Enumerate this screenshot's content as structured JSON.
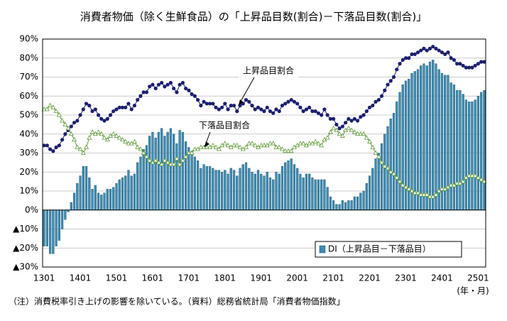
{
  "chart_data": {
    "type": "combo",
    "title": "消費者物価（除く生鮮食品）の「上昇品目数(割合)－下落品目数(割合)」",
    "x_label": "(年・月)",
    "note": "（注）消費税率引き上げの影響を除いている。（資料）総務省統計局「消費者物価指数」",
    "legend": "lower right",
    "grid": true,
    "categories": [
      "1301",
      null,
      null,
      null,
      null,
      null,
      null,
      null,
      null,
      null,
      null,
      null,
      "1401",
      null,
      null,
      null,
      null,
      null,
      null,
      null,
      null,
      null,
      null,
      null,
      "1501",
      null,
      null,
      null,
      null,
      null,
      null,
      null,
      null,
      null,
      null,
      null,
      "1601",
      null,
      null,
      null,
      null,
      null,
      null,
      null,
      null,
      null,
      null,
      null,
      "1701",
      null,
      null,
      null,
      null,
      null,
      null,
      null,
      null,
      null,
      null,
      null,
      "1801",
      null,
      null,
      null,
      null,
      null,
      null,
      null,
      null,
      null,
      null,
      null,
      "1901",
      null,
      null,
      null,
      null,
      null,
      null,
      null,
      null,
      null,
      null,
      null,
      "2001",
      null,
      null,
      null,
      null,
      null,
      null,
      null,
      null,
      null,
      null,
      null,
      "2101",
      null,
      null,
      null,
      null,
      null,
      null,
      null,
      null,
      null,
      null,
      null,
      "2201",
      null,
      null,
      null,
      null,
      null,
      null,
      null,
      null,
      null,
      null,
      null,
      "2301",
      null,
      null,
      null,
      null,
      null,
      null,
      null,
      null,
      null,
      null,
      null,
      "2401",
      null,
      null,
      null,
      null,
      null,
      null,
      null,
      null,
      null,
      null,
      null,
      "2501",
      null,
      null
    ],
    "ylim": [
      -30,
      90
    ],
    "yticks": [
      {
        "value": -30,
        "label": "▲30%"
      },
      {
        "value": -20,
        "label": "▲20%"
      },
      {
        "value": -10,
        "label": "▲10%"
      },
      {
        "value": 0,
        "label": "0%"
      },
      {
        "value": 10,
        "label": "10%"
      },
      {
        "value": 20,
        "label": "20%"
      },
      {
        "value": 30,
        "label": "30%"
      },
      {
        "value": 40,
        "label": "40%"
      },
      {
        "value": 50,
        "label": "50%"
      },
      {
        "value": 60,
        "label": "60%"
      },
      {
        "value": 70,
        "label": "70%"
      },
      {
        "value": 80,
        "label": "80%"
      },
      {
        "value": 90,
        "label": "90%"
      }
    ],
    "series": [
      {
        "name": "DI（上昇品目－下落品目）",
        "type": "bar",
        "color": "#3b8db3",
        "values": [
          -19,
          -19,
          -23,
          -23,
          -19,
          -16,
          -10,
          -5,
          -1,
          4,
          9,
          14,
          18,
          23,
          23,
          17,
          11,
          13,
          9,
          8,
          9,
          11,
          11,
          12,
          14,
          16,
          17,
          18,
          21,
          18,
          19,
          25,
          28,
          32,
          34,
          39,
          41,
          38,
          41,
          43,
          39,
          41,
          43,
          40,
          35,
          42,
          41,
          36,
          33,
          31,
          28,
          26,
          22,
          24,
          23,
          23,
          22,
          21,
          21,
          20,
          21,
          19,
          22,
          21,
          18,
          22,
          24,
          25,
          22,
          20,
          19,
          21,
          19,
          18,
          20,
          17,
          16,
          20,
          19,
          23,
          25,
          26,
          27,
          24,
          22,
          19,
          17,
          19,
          19,
          17,
          16,
          16,
          16,
          16,
          12,
          7,
          5,
          3,
          3,
          5,
          4,
          5,
          5,
          7,
          7,
          9,
          10,
          14,
          18,
          22,
          27,
          30,
          35,
          40,
          44,
          48,
          51,
          57,
          62,
          66,
          68,
          69,
          72,
          73,
          74,
          76,
          77,
          76,
          78,
          79,
          77,
          74,
          72,
          71,
          71,
          67,
          66,
          63,
          63,
          61,
          58,
          57,
          57,
          58,
          60,
          62,
          63
        ]
      },
      {
        "name": "上昇品目割合",
        "type": "line",
        "marker": "circle",
        "color": "#1b1f6e",
        "values": [
          34,
          34,
          32,
          31,
          33,
          34,
          37,
          40,
          42,
          44,
          46,
          47,
          50,
          53,
          56,
          55,
          52,
          53,
          50,
          48,
          47,
          48,
          50,
          52,
          53,
          54,
          54,
          54,
          56,
          53,
          55,
          58,
          60,
          62,
          62,
          65,
          66,
          64,
          66,
          67,
          65,
          66,
          67,
          64,
          62,
          66,
          67,
          64,
          63,
          61,
          60,
          58,
          55,
          57,
          56,
          56,
          56,
          54,
          53,
          54,
          56,
          53,
          55,
          55,
          52,
          55,
          56,
          58,
          57,
          55,
          53,
          54,
          53,
          52,
          54,
          52,
          51,
          53,
          52,
          55,
          56,
          57,
          58,
          57,
          56,
          54,
          52,
          53,
          54,
          52,
          52,
          51,
          50,
          53,
          50,
          48,
          48,
          45,
          43,
          44,
          46,
          48,
          47,
          48,
          47,
          49,
          50,
          52,
          54,
          55,
          57,
          58,
          60,
          63,
          66,
          68,
          70,
          74,
          77,
          79,
          80,
          80,
          82,
          82,
          83,
          84,
          85,
          84,
          85,
          86,
          85,
          84,
          83,
          82,
          83,
          80,
          79,
          77,
          77,
          76,
          75,
          75,
          75,
          76,
          77,
          78,
          78
        ]
      },
      {
        "name": "下落品目割合",
        "type": "line",
        "marker": "triangle",
        "color": "#5c9a35",
        "values": [
          53,
          53,
          55,
          54,
          52,
          50,
          47,
          45,
          43,
          40,
          37,
          33,
          32,
          30,
          33,
          38,
          41,
          40,
          41,
          40,
          38,
          37,
          39,
          40,
          39,
          38,
          37,
          36,
          35,
          35,
          36,
          33,
          32,
          30,
          28,
          26,
          25,
          26,
          25,
          24,
          26,
          25,
          24,
          24,
          27,
          24,
          26,
          28,
          30,
          30,
          32,
          32,
          33,
          33,
          33,
          33,
          34,
          33,
          32,
          34,
          35,
          34,
          33,
          34,
          34,
          33,
          32,
          33,
          35,
          35,
          34,
          33,
          34,
          34,
          34,
          35,
          35,
          33,
          33,
          32,
          31,
          31,
          31,
          33,
          34,
          35,
          35,
          34,
          35,
          35,
          36,
          35,
          34,
          37,
          38,
          41,
          43,
          42,
          40,
          39,
          42,
          43,
          42,
          41,
          40,
          40,
          40,
          38,
          36,
          33,
          30,
          28,
          25,
          23,
          22,
          20,
          19,
          17,
          15,
          13,
          12,
          11,
          10,
          9,
          9,
          8,
          8,
          8,
          7,
          7,
          8,
          10,
          11,
          11,
          12,
          13,
          13,
          14,
          14,
          15,
          17,
          18,
          18,
          18,
          17,
          16,
          15
        ]
      }
    ]
  }
}
